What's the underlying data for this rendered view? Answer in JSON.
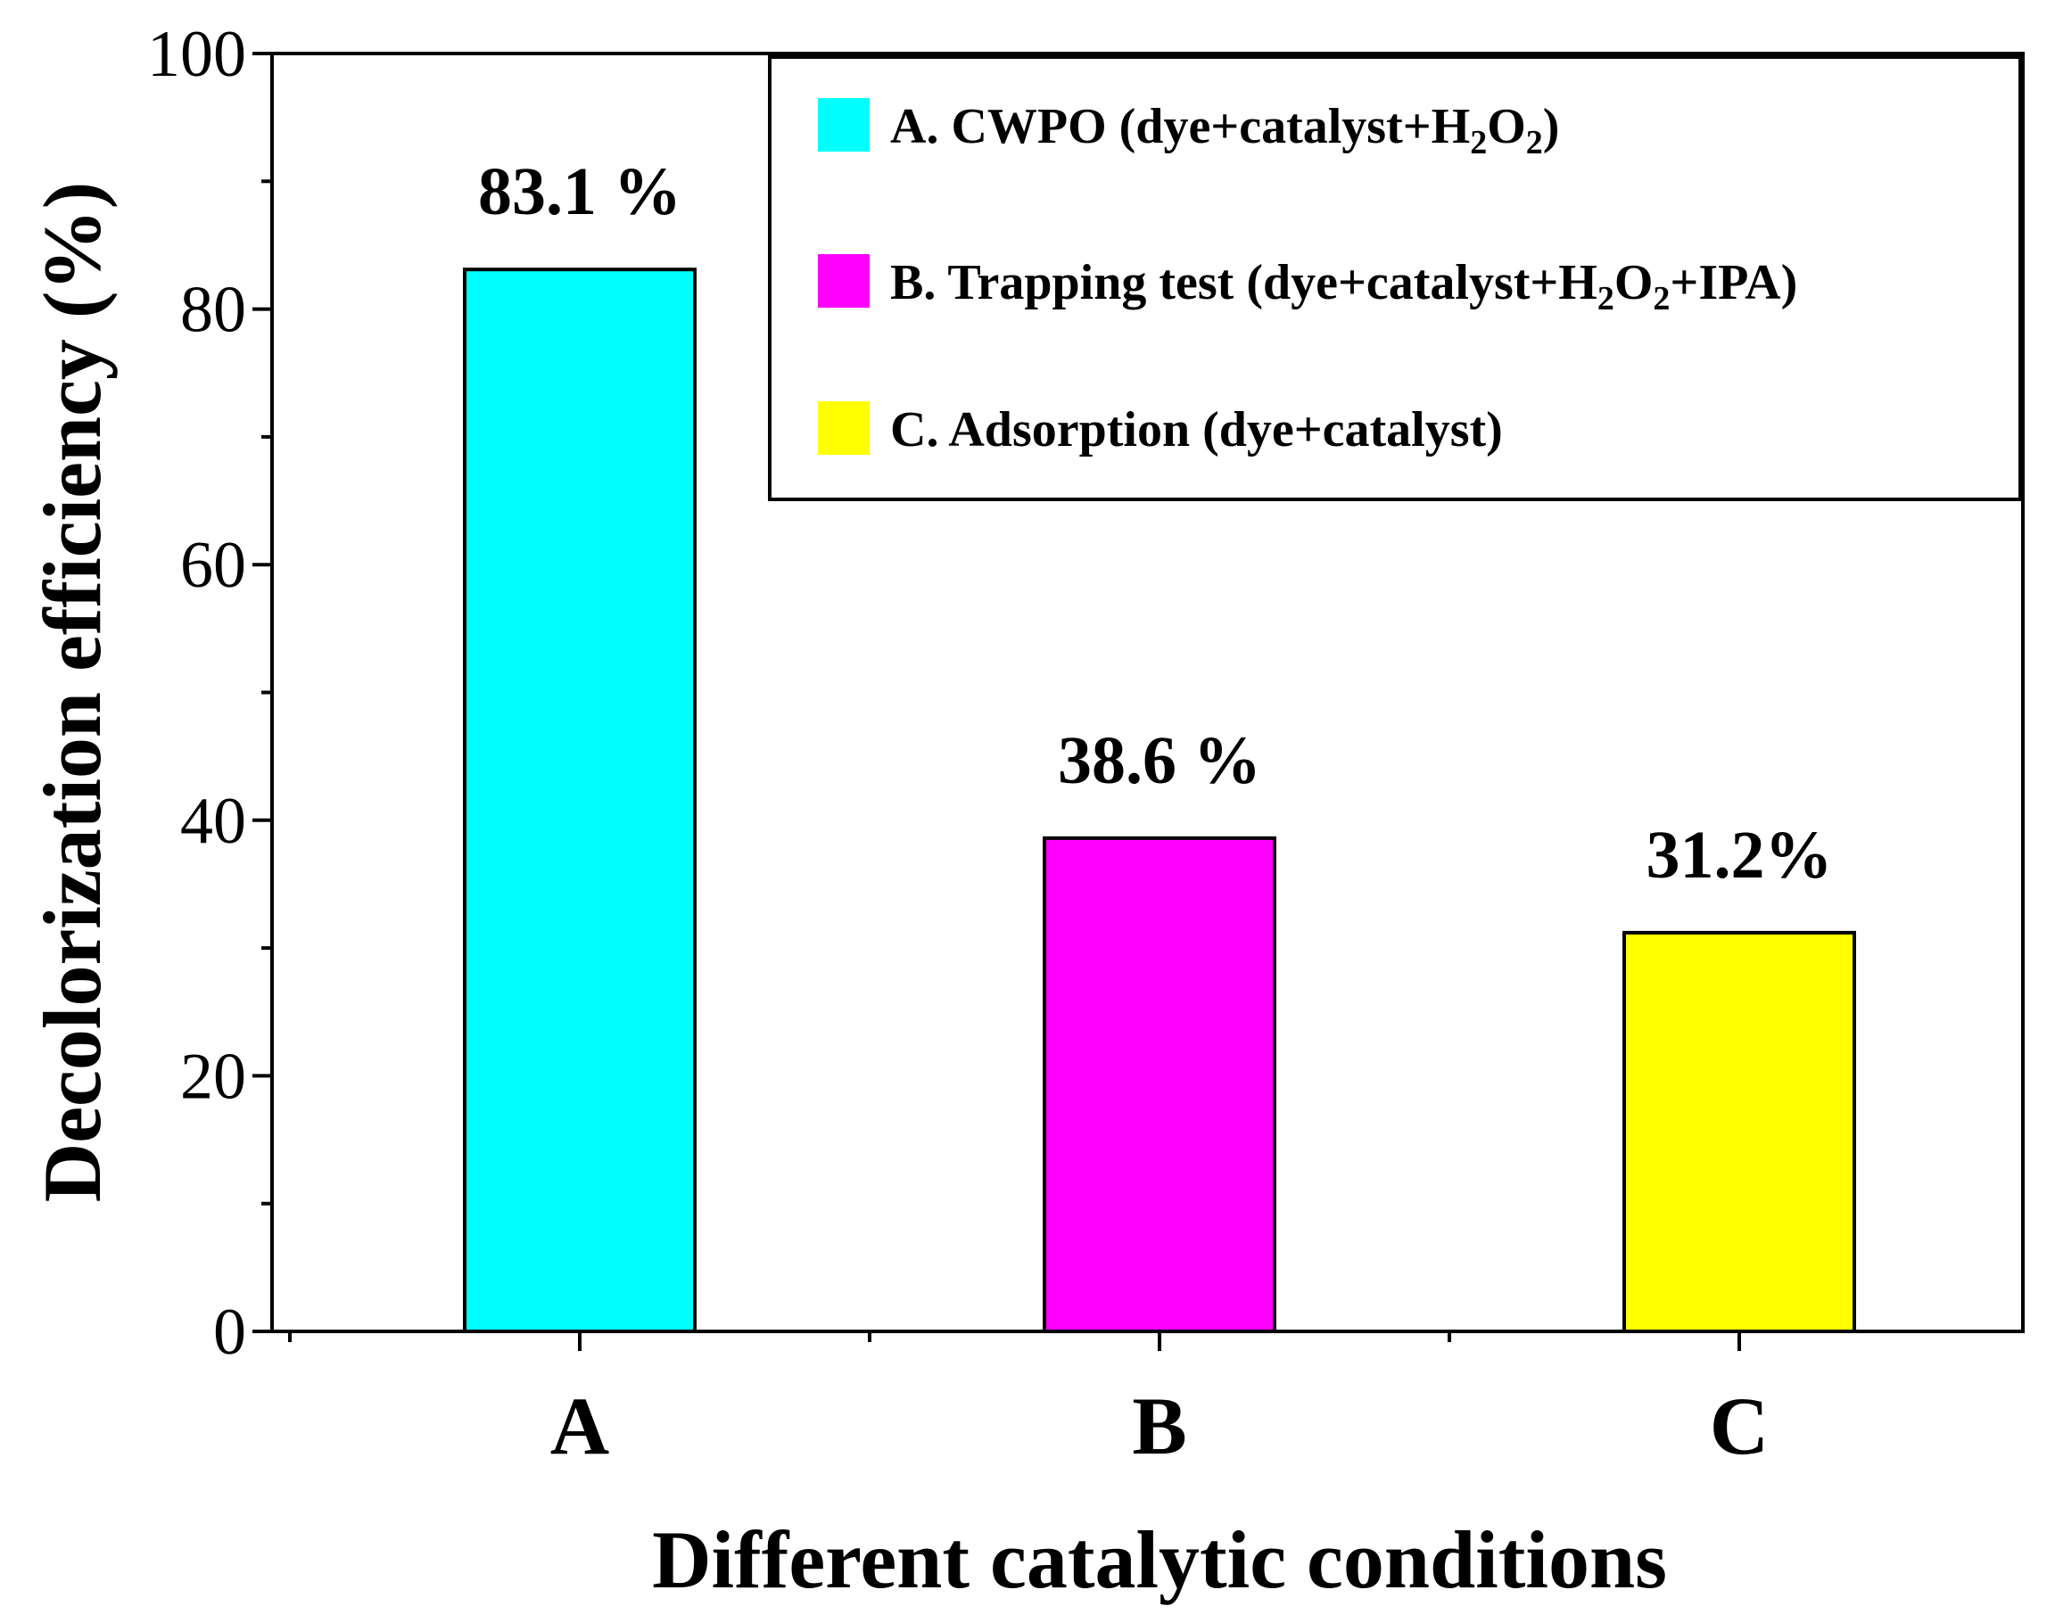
{
  "chart_data": {
    "type": "bar",
    "xlabel": "Different catalytic conditions",
    "ylabel": "Decolorization efficiency (%)",
    "ylim": [
      0,
      100
    ],
    "yticks": [
      0,
      20,
      40,
      60,
      80,
      100
    ],
    "grid": false,
    "categories": [
      "A",
      "B",
      "C"
    ],
    "values": [
      83.1,
      38.6,
      31.2
    ],
    "data_labels": [
      "83.1 %",
      "38.6 %",
      "31.2%"
    ],
    "colors": [
      "#00ffff",
      "#ff00ff",
      "#ffff00"
    ],
    "legend_position": "top-right",
    "legend": [
      {
        "prefix": "A. CWPO (dye+catalyst+H",
        "s1": "2",
        "mid": "O",
        "s2": "2",
        "suffix": ")"
      },
      {
        "prefix": "B. Trapping test (dye+catalyst+H",
        "s1": "2",
        "mid": "O",
        "s2": "2",
        "suffix": "+IPA)"
      },
      {
        "prefix": "C. Adsorption (dye+catalyst)",
        "s1": "",
        "mid": "",
        "s2": "",
        "suffix": ""
      }
    ]
  }
}
